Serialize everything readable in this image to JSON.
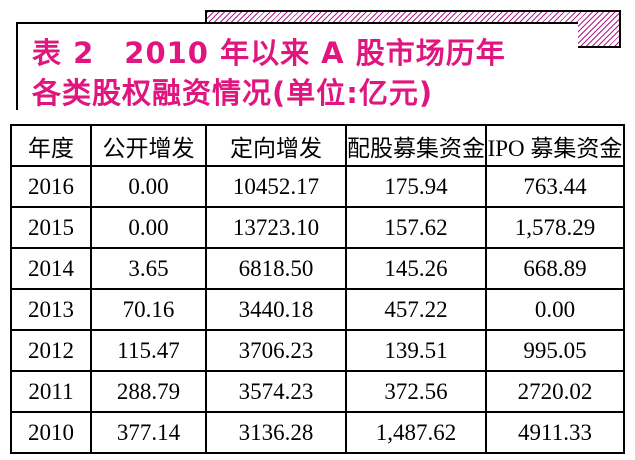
{
  "header": {
    "title_lines": [
      "表 2　2010 年以来 A 股市场历年",
      "各类股权融资情况(单位:亿元)"
    ]
  },
  "table": {
    "columns": [
      "年度",
      "公开增发",
      "定向增发",
      "配股募集资金",
      "IPO 募集资金"
    ],
    "rows": [
      [
        "2016",
        "0.00",
        "10452.17",
        "175.94",
        "763.44"
      ],
      [
        "2015",
        "0.00",
        "13723.10",
        "157.62",
        "1,578.29"
      ],
      [
        "2014",
        "3.65",
        "6818.50",
        "145.26",
        "668.89"
      ],
      [
        "2013",
        "70.16",
        "3440.18",
        "457.22",
        "0.00"
      ],
      [
        "2012",
        "115.47",
        "3706.23",
        "139.51",
        "995.05"
      ],
      [
        "2011",
        "288.79",
        "3574.23",
        "372.56",
        "2720.02"
      ],
      [
        "2010",
        "377.14",
        "3136.28",
        "1,487.62",
        "4911.33"
      ]
    ]
  }
}
